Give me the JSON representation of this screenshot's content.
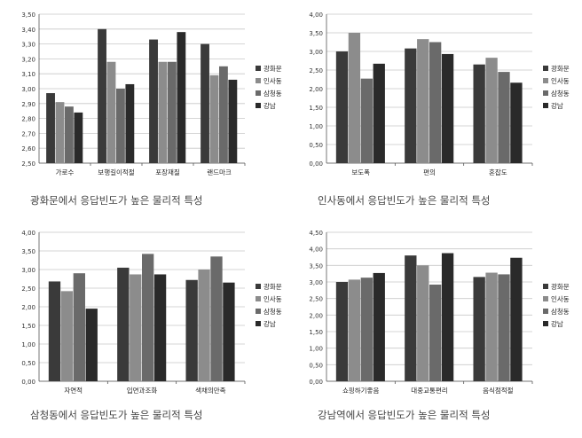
{
  "legend": [
    "광화문",
    "인사동",
    "삼청동",
    "강남"
  ],
  "colors": [
    "#3a3a3a",
    "#8c8c8c",
    "#6a6a6a",
    "#2a2a2a"
  ],
  "chart_data": [
    {
      "type": "bar",
      "caption": "광화문에서 응답빈도가 높은 물리적 특성",
      "categories": [
        "가로수",
        "보행길이적절",
        "포장재질",
        "랜드마크"
      ],
      "series": [
        {
          "name": "광화문",
          "values": [
            2.97,
            3.4,
            3.33,
            3.3
          ]
        },
        {
          "name": "인사동",
          "values": [
            2.91,
            3.18,
            3.18,
            3.09
          ]
        },
        {
          "name": "삼청동",
          "values": [
            2.88,
            3.0,
            3.18,
            3.15
          ]
        },
        {
          "name": "강남",
          "values": [
            2.84,
            3.03,
            3.38,
            3.06
          ]
        }
      ],
      "ylim": [
        2.5,
        3.5
      ],
      "yticks": [
        "2,50",
        "2,60",
        "2,70",
        "2,80",
        "2,90",
        "3,00",
        "3,10",
        "3,20",
        "3,30",
        "3,40",
        "3,50"
      ],
      "legend_position": "right"
    },
    {
      "type": "bar",
      "caption": "인사동에서 응답빈도가 높은 물리적 특성",
      "categories": [
        "보도폭",
        "편의",
        "혼잡도"
      ],
      "series": [
        {
          "name": "광화문",
          "values": [
            3.0,
            3.08,
            2.65
          ]
        },
        {
          "name": "인사동",
          "values": [
            3.5,
            3.33,
            2.83
          ]
        },
        {
          "name": "삼청동",
          "values": [
            2.27,
            3.25,
            2.45
          ]
        },
        {
          "name": "강남",
          "values": [
            2.67,
            2.93,
            2.16
          ]
        }
      ],
      "ylim": [
        0.0,
        4.0
      ],
      "yticks": [
        "0,00",
        "0,50",
        "1,00",
        "1,50",
        "2,00",
        "2,50",
        "3,00",
        "3,50",
        "4,00"
      ],
      "legend_position": "right"
    },
    {
      "type": "bar",
      "caption": "삼청동에서 응답빈도가 높은 물리적 특성",
      "categories": [
        "자연적",
        "입면과조화",
        "색채의만족"
      ],
      "series": [
        {
          "name": "광화문",
          "values": [
            2.68,
            3.05,
            2.72
          ]
        },
        {
          "name": "인사동",
          "values": [
            2.42,
            2.87,
            3.0
          ]
        },
        {
          "name": "삼청동",
          "values": [
            2.9,
            3.42,
            3.35
          ]
        },
        {
          "name": "강남",
          "values": [
            1.95,
            2.87,
            2.65
          ]
        }
      ],
      "ylim": [
        0.0,
        4.0
      ],
      "yticks": [
        "0,00",
        "0,50",
        "1,00",
        "1,50",
        "2,00",
        "2,50",
        "3,00",
        "3,50",
        "4,00"
      ],
      "legend_position": "right"
    },
    {
      "type": "bar",
      "caption": "강남역에서 응답빈도가 높은 물리적 특성",
      "categories": [
        "쇼핑하기좋음",
        "대중교통편리",
        "음식점적절"
      ],
      "series": [
        {
          "name": "광화문",
          "values": [
            3.0,
            3.8,
            3.15
          ]
        },
        {
          "name": "인사동",
          "values": [
            3.07,
            3.5,
            3.28
          ]
        },
        {
          "name": "삼청동",
          "values": [
            3.13,
            2.92,
            3.23
          ]
        },
        {
          "name": "강남",
          "values": [
            3.27,
            3.87,
            3.73
          ]
        }
      ],
      "ylim": [
        0.0,
        4.5
      ],
      "yticks": [
        "0,00",
        "0,50",
        "1,00",
        "1,50",
        "2,00",
        "2,50",
        "3,00",
        "3,50",
        "4,00",
        "4,50"
      ],
      "legend_position": "right"
    }
  ]
}
